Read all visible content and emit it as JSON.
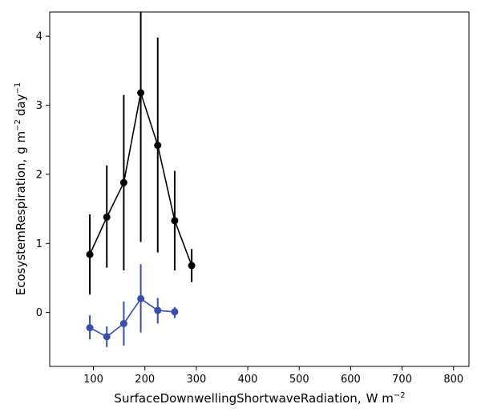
{
  "chart_data": {
    "type": "line",
    "xlabel": "SurfaceDownwellingShortwaveRadiation,",
    "xlabel_unit": "W m",
    "xlabel_exp": "−2",
    "ylabel": "EcosystemRespiration,",
    "ylabel_unit_1": "g m",
    "ylabel_exp_1": "−2",
    "ylabel_unit_2": "day",
    "ylabel_exp_2": "−1",
    "xlim": [
      15,
      830
    ],
    "ylim": [
      -0.78,
      4.35
    ],
    "xticks": [
      100,
      200,
      300,
      400,
      500,
      600,
      700,
      800
    ],
    "yticks": [
      0,
      1,
      2,
      3,
      4
    ],
    "grid": false,
    "series": [
      {
        "color": "#000000",
        "points": [
          {
            "x": 93,
            "y": 0.84,
            "lo": 0.26,
            "hi": 1.42
          },
          {
            "x": 126,
            "y": 1.38,
            "lo": 0.65,
            "hi": 2.13
          },
          {
            "x": 159,
            "y": 1.88,
            "lo": 0.61,
            "hi": 3.15
          },
          {
            "x": 192,
            "y": 3.18,
            "lo": 1.02,
            "hi": 4.4
          },
          {
            "x": 225,
            "y": 2.42,
            "lo": 0.87,
            "hi": 3.98
          },
          {
            "x": 258,
            "y": 1.33,
            "lo": 0.61,
            "hi": 2.05
          },
          {
            "x": 291,
            "y": 0.68,
            "lo": 0.44,
            "hi": 0.92
          }
        ]
      },
      {
        "color": "#3a4ea8",
        "points": [
          {
            "x": 93,
            "y": -0.22,
            "lo": -0.39,
            "hi": -0.04
          },
          {
            "x": 126,
            "y": -0.35,
            "lo": -0.5,
            "hi": -0.2
          },
          {
            "x": 159,
            "y": -0.16,
            "lo": -0.48,
            "hi": 0.16
          },
          {
            "x": 192,
            "y": 0.2,
            "lo": -0.29,
            "hi": 0.7
          },
          {
            "x": 225,
            "y": 0.03,
            "lo": -0.16,
            "hi": 0.21
          },
          {
            "x": 258,
            "y": 0.01,
            "lo": -0.08,
            "hi": 0.08
          }
        ]
      }
    ]
  }
}
